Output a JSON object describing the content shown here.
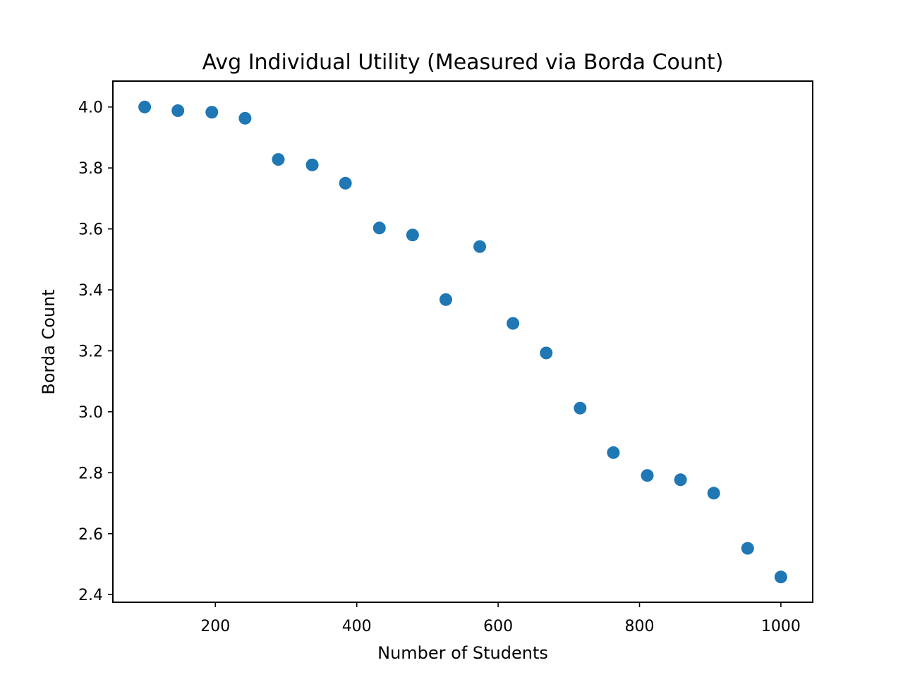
{
  "chart_data": {
    "type": "scatter",
    "title": "Avg Individual Utility (Measured via Borda Count)",
    "xlabel": "Number of Students",
    "ylabel": "Borda Count",
    "xlim": [
      55,
      1045
    ],
    "ylim": [
      2.375,
      4.085
    ],
    "xticks": [
      200,
      400,
      600,
      800,
      1000
    ],
    "yticks": [
      2.4,
      2.6,
      2.8,
      3.0,
      3.2,
      3.4,
      3.6,
      3.8,
      4.0
    ],
    "grid": false,
    "series": [
      {
        "color": "#1f77b4",
        "points": [
          {
            "x": 100,
            "y": 4.0
          },
          {
            "x": 147,
            "y": 3.988
          },
          {
            "x": 195,
            "y": 3.983
          },
          {
            "x": 242,
            "y": 3.963
          },
          {
            "x": 289,
            "y": 3.828
          },
          {
            "x": 337,
            "y": 3.81
          },
          {
            "x": 384,
            "y": 3.75
          },
          {
            "x": 432,
            "y": 3.603
          },
          {
            "x": 479,
            "y": 3.58
          },
          {
            "x": 526,
            "y": 3.368
          },
          {
            "x": 574,
            "y": 3.542
          },
          {
            "x": 621,
            "y": 3.29
          },
          {
            "x": 668,
            "y": 3.193
          },
          {
            "x": 716,
            "y": 3.012
          },
          {
            "x": 763,
            "y": 2.866
          },
          {
            "x": 811,
            "y": 2.791
          },
          {
            "x": 858,
            "y": 2.777
          },
          {
            "x": 905,
            "y": 2.733
          },
          {
            "x": 953,
            "y": 2.552
          },
          {
            "x": 1000,
            "y": 2.458
          }
        ]
      }
    ]
  }
}
